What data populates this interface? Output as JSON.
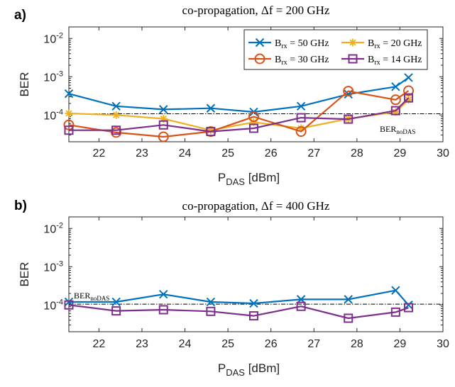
{
  "chart_data": [
    {
      "panel": "a)",
      "type": "line",
      "title": "co-propagation, Δf = 200 GHz",
      "xlabel": "P_DAS [dBm]",
      "ylabel": "BER",
      "xlim": [
        21.3,
        30
      ],
      "ylim": [
        2e-05,
        0.02
      ],
      "yscale": "log",
      "xticks": [
        "22",
        "23",
        "24",
        "25",
        "26",
        "27",
        "28",
        "29",
        "30"
      ],
      "yticks": [
        "10^-4",
        "10^-3",
        "10^-2"
      ],
      "legend_placement": "top-right",
      "reference": {
        "label": "BER_noDAS",
        "value": 0.000108
      },
      "series": [
        {
          "name": "B_rx = 50 GHz",
          "color": "#0072BD",
          "marker": "x",
          "x": [
            21.3,
            22.4,
            23.5,
            24.6,
            25.6,
            26.7,
            27.8,
            28.9,
            29.2
          ],
          "y": [
            0.00036,
            0.00017,
            0.00014,
            0.00015,
            0.00012,
            0.00017,
            0.00035,
            0.00055,
            0.00095
          ]
        },
        {
          "name": "B_rx = 20 GHz",
          "color": "#EDB120",
          "marker": "asterisk",
          "x": [
            21.3,
            22.4,
            23.5,
            24.6,
            25.6,
            26.7,
            27.8,
            28.9,
            29.2
          ],
          "y": [
            0.00011,
            0.0001,
            8e-05,
            4e-05,
            6.5e-05,
            4.5e-05,
            8e-05,
            0.00012,
            0.00025
          ]
        },
        {
          "name": "B_rx = 30 GHz",
          "color": "#D95319",
          "marker": "circle",
          "x": [
            21.3,
            22.4,
            23.5,
            24.6,
            25.6,
            26.7,
            27.8,
            28.9,
            29.2
          ],
          "y": [
            5.5e-05,
            3.5e-05,
            2.7e-05,
            3.7e-05,
            9e-05,
            3.7e-05,
            0.00042,
            0.00025,
            0.00043
          ]
        },
        {
          "name": "B_rx = 14 GHz",
          "color": "#7E2F8E",
          "marker": "square",
          "x": [
            21.3,
            22.4,
            23.5,
            24.6,
            25.6,
            26.7,
            27.8,
            28.9,
            29.2
          ],
          "y": [
            4e-05,
            4e-05,
            5.5e-05,
            3.7e-05,
            4.5e-05,
            8.5e-05,
            7.8e-05,
            0.00013,
            0.00028
          ]
        }
      ]
    },
    {
      "panel": "b)",
      "type": "line",
      "title": "co-propagation, Δf = 400 GHz",
      "xlabel": "P_DAS [dBm]",
      "ylabel": "BER",
      "xlim": [
        21.3,
        30
      ],
      "ylim": [
        2e-05,
        0.02
      ],
      "yscale": "log",
      "xticks": [
        "22",
        "23",
        "24",
        "25",
        "26",
        "27",
        "28",
        "29",
        "30"
      ],
      "yticks": [
        "10^-4",
        "10^-3",
        "10^-2"
      ],
      "reference": {
        "label": "BER_noDAS",
        "value": 0.000105
      },
      "series": [
        {
          "name": "B_rx = 50 GHz",
          "color": "#0072BD",
          "marker": "x",
          "x": [
            21.3,
            22.4,
            23.5,
            24.6,
            25.6,
            26.7,
            27.8,
            28.9,
            29.2
          ],
          "y": [
            0.00012,
            0.00012,
            0.00019,
            0.00012,
            0.00011,
            0.00014,
            0.00014,
            0.00024,
            0.0001
          ]
        },
        {
          "name": "B_rx = 14 GHz",
          "color": "#7E2F8E",
          "marker": "square",
          "x": [
            21.3,
            22.4,
            23.5,
            24.6,
            25.6,
            26.7,
            27.8,
            28.9,
            29.2
          ],
          "y": [
            0.0001,
            7e-05,
            7.5e-05,
            6.8e-05,
            5.2e-05,
            9.2e-05,
            4.5e-05,
            6.5e-05,
            8.5e-05
          ]
        }
      ]
    }
  ]
}
